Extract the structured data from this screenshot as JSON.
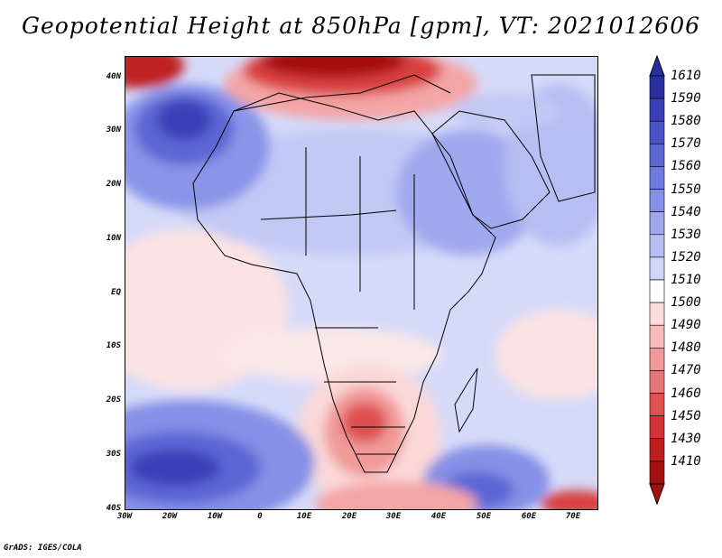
{
  "title": "Geopotential Height at 850hPa [gpm], VT: 2021012606",
  "credit": "GrADS: IGES/COLA",
  "lat_labels": [
    "40N",
    "30N",
    "20N",
    "10N",
    "EQ",
    "10S",
    "20S",
    "30S",
    "40S"
  ],
  "lon_labels": [
    "30W",
    "20W",
    "10W",
    "0",
    "10E",
    "20E",
    "30E",
    "40E",
    "50E",
    "60E",
    "70E"
  ],
  "colorbar": {
    "labels": [
      "1610",
      "1590",
      "1580",
      "1570",
      "1560",
      "1550",
      "1540",
      "1530",
      "1520",
      "1510",
      "1500",
      "1490",
      "1480",
      "1470",
      "1460",
      "1450",
      "1430",
      "1410"
    ],
    "colors": [
      "#2a2fa0",
      "#3a3fb8",
      "#4a52c8",
      "#5c66d4",
      "#6e79de",
      "#8590e6",
      "#9ea7ed",
      "#b7bef3",
      "#d0d5f8",
      "#ffffff",
      "#fddcdc",
      "#f8bcbc",
      "#f19a9a",
      "#e87575",
      "#de5050",
      "#d03434",
      "#be1e1e",
      "#a51010"
    ]
  }
}
